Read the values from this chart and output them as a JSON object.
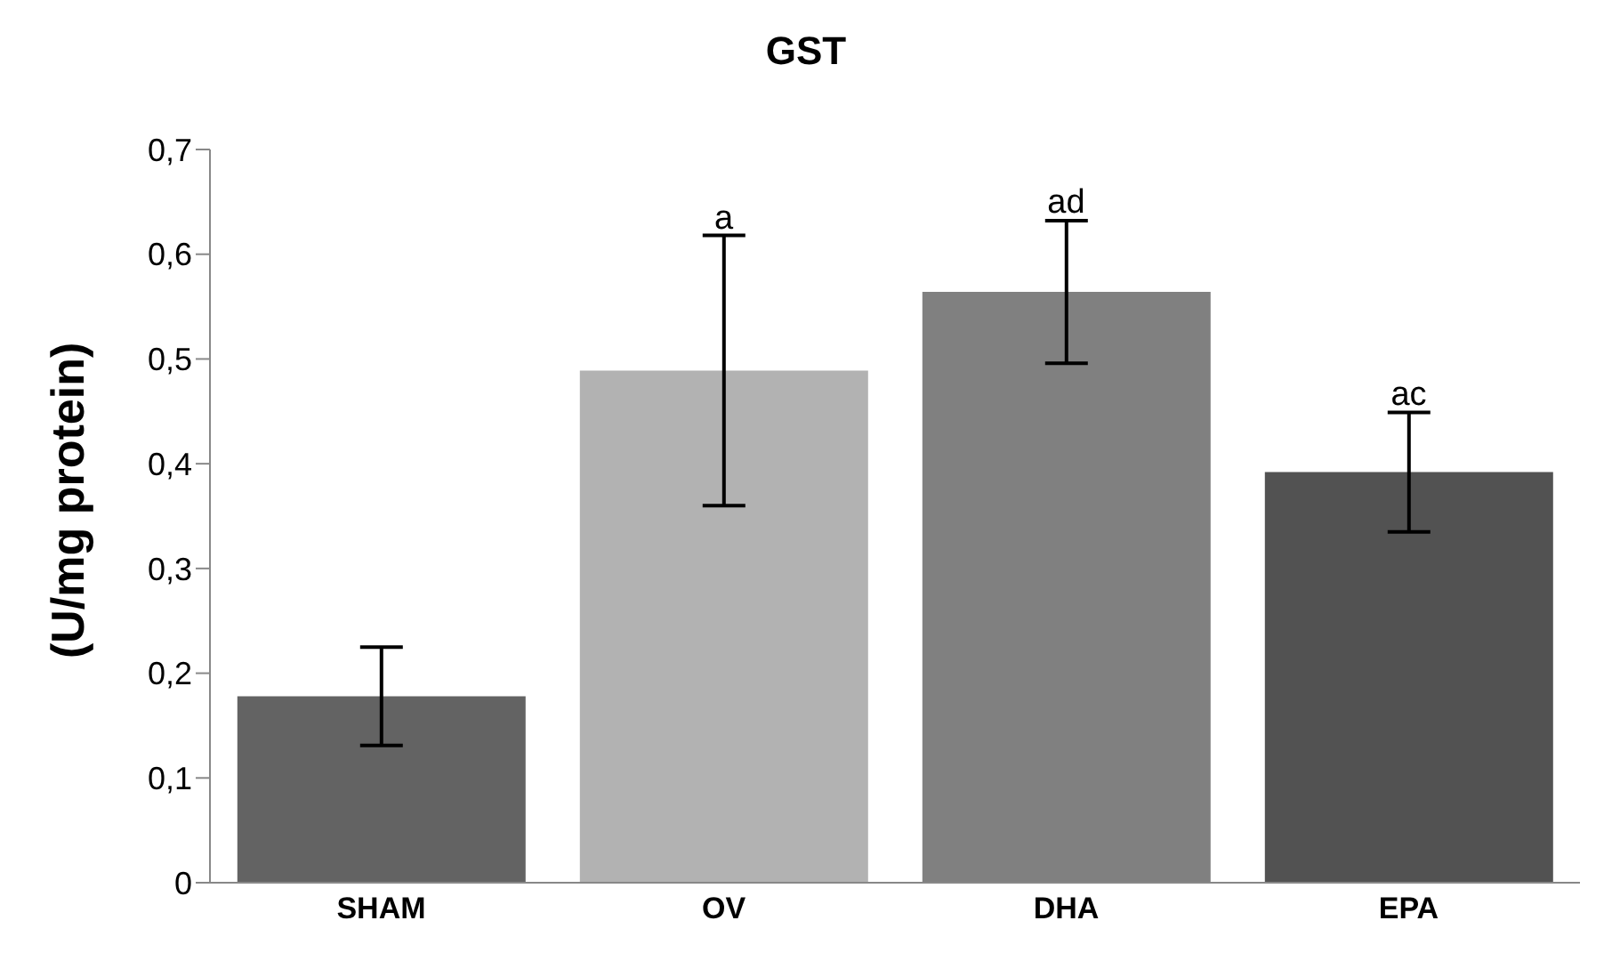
{
  "chart_data": {
    "type": "bar",
    "title": "GST",
    "ylabel": "(U/mg protein)",
    "categories": [
      "SHAM",
      "OV",
      "DHA",
      "EPA"
    ],
    "values": [
      0.178,
      0.489,
      0.564,
      0.392
    ],
    "errors": [
      0.047,
      0.129,
      0.068,
      0.057
    ],
    "colors": [
      "#636363",
      "#b2b2b2",
      "#808080",
      "#525252"
    ],
    "ylim": [
      0,
      0.7
    ],
    "yticks": [
      {
        "value": 0,
        "label": "0"
      },
      {
        "value": 0.1,
        "label": "0,1"
      },
      {
        "value": 0.2,
        "label": "0,2"
      },
      {
        "value": 0.3,
        "label": "0,3"
      },
      {
        "value": 0.4,
        "label": "0,4"
      },
      {
        "value": 0.5,
        "label": "0,5"
      },
      {
        "value": 0.6,
        "label": "0,6"
      },
      {
        "value": 0.7,
        "label": "0,7"
      }
    ],
    "grid": false,
    "legend": false,
    "annotations": [
      {
        "text": "a",
        "x": "OV",
        "y": 0.618
      },
      {
        "text": "ad",
        "x": "DHA",
        "y": 0.633
      },
      {
        "text": "ac",
        "x": "EPA",
        "y": 0.449
      }
    ]
  }
}
